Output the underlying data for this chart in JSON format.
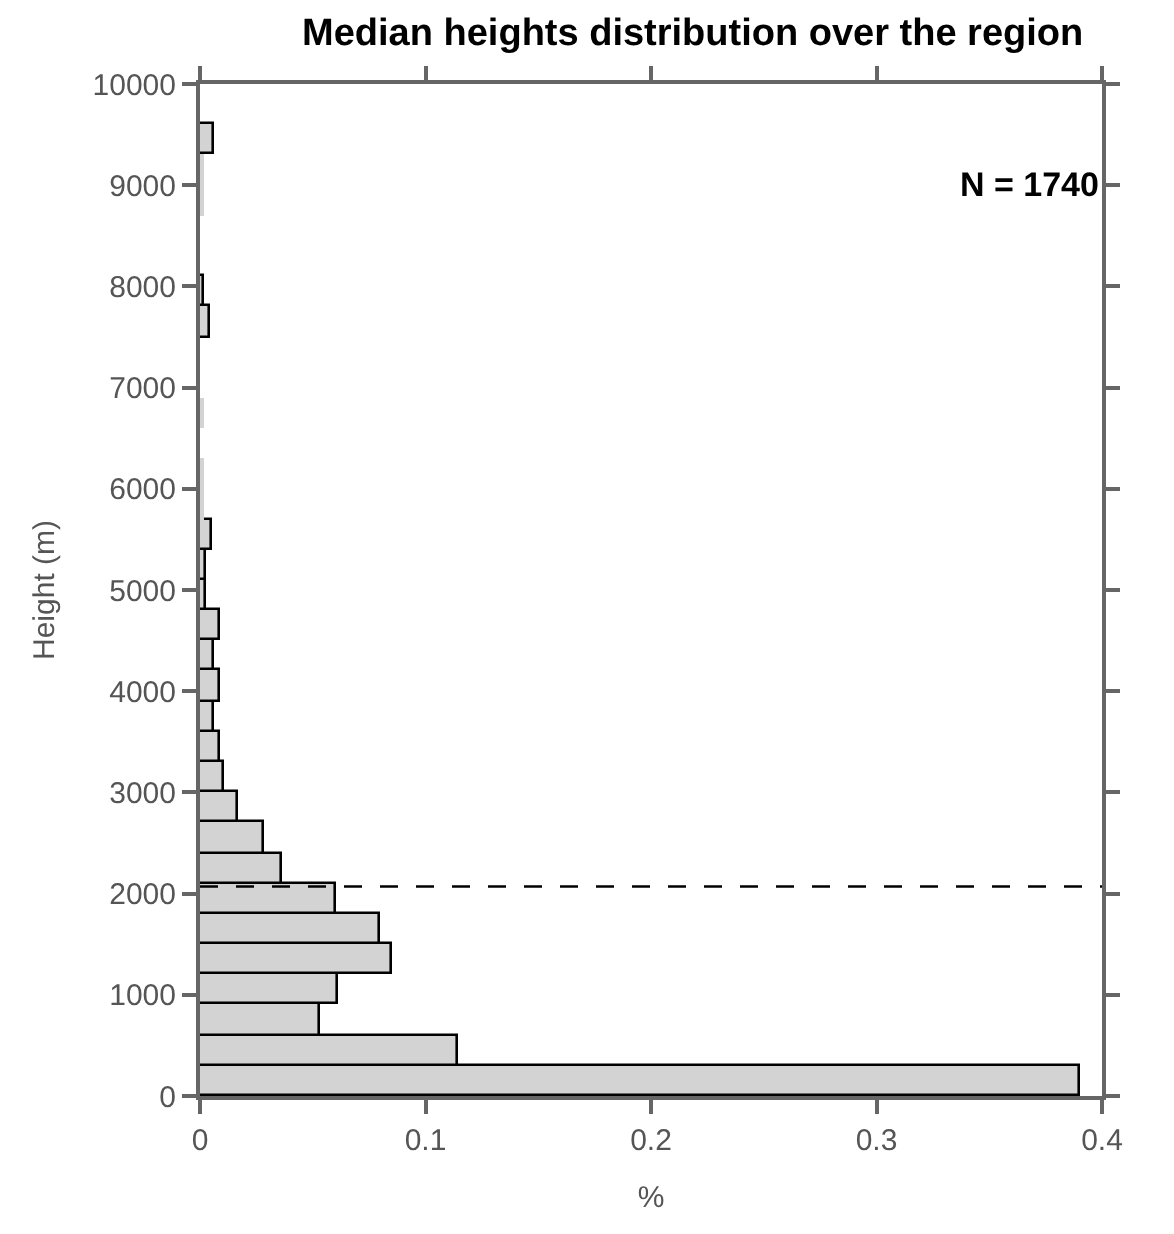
{
  "chart_data": {
    "type": "histogram",
    "orientation": "horizontal",
    "title": "Median heights distribution over the region",
    "xlabel": "%",
    "ylabel": "Height (m)",
    "bins": [
      0,
      300,
      600,
      900,
      1200,
      1500,
      1800,
      2100,
      2400,
      2700,
      3000,
      3300,
      3600,
      3900,
      4200,
      4500,
      4800,
      5100,
      5400,
      5700,
      6000,
      6300,
      6600,
      6900,
      7200,
      7500,
      7800,
      8100,
      8400,
      8700,
      9000,
      9300,
      9600
    ],
    "values": [
      0.39,
      0.114,
      0.053,
      0.061,
      0.085,
      0.08,
      0.06,
      0.036,
      0.028,
      0.017,
      0.011,
      0.009,
      0.006,
      0.009,
      0.006,
      0.009,
      0.003,
      0.003,
      0.005,
      0.001,
      0.001,
      0,
      0.001,
      0,
      0,
      0.004,
      0.002,
      0,
      0,
      0.001,
      0.001,
      0.006
    ],
    "color": "#d3d3d3",
    "xlim": [
      0,
      0.4
    ],
    "xticks": [
      0,
      0.1,
      0.2,
      0.3,
      0.4
    ],
    "ylim": [
      0,
      10000
    ],
    "yticks": [
      0,
      1000,
      2000,
      3000,
      4000,
      5000,
      6000,
      7000,
      8000,
      9000,
      10000
    ],
    "ref_lines": [
      {
        "axis": "y",
        "value": 2070,
        "line_style": "dashed",
        "color": "#000000"
      }
    ],
    "annotations": [
      "N = 1740"
    ]
  }
}
